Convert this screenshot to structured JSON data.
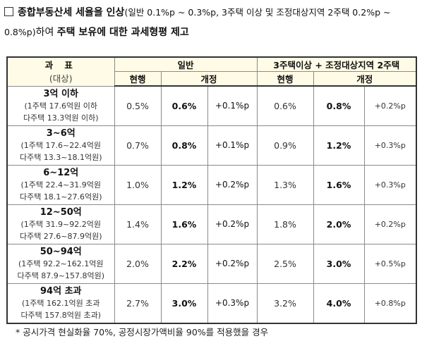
{
  "headline": {
    "title_bold": "종합부동산세 세율을 인상",
    "title_detail": "(일반 0.1%p ~ 0.3%p, 3주택 이상 및 조정대상지역 2주택 0.2%p ~ 0.8%p)",
    "title_mid": "하여 ",
    "title_end_bold": "주택 보유에 대한 과세형평 제고"
  },
  "table": {
    "header": {
      "col_bracket_top": "과  표",
      "col_bracket_sub": "(대상)",
      "group_general": "일반",
      "group_multi": "3주택이상 + 조정대상지역 2주택",
      "current": "현행",
      "revised": "개정"
    },
    "rows": [
      {
        "range": "3억 이하",
        "note1": "(1주택 17.6억원 이하",
        "note2": "다주택 13.3억원 이하)",
        "gen_current": "0.5%",
        "gen_revised": "0.6%",
        "gen_delta": "+0.1%p",
        "multi_current": "0.6%",
        "multi_revised": "0.8%",
        "multi_delta": "+0.2%p"
      },
      {
        "range": "3~6억",
        "note1": "(1주택 17.6~22.4억원",
        "note2": "다주택 13.3~18.1억원)",
        "gen_current": "0.7%",
        "gen_revised": "0.8%",
        "gen_delta": "+0.1%p",
        "multi_current": "0.9%",
        "multi_revised": "1.2%",
        "multi_delta": "+0.3%p"
      },
      {
        "range": "6~12억",
        "note1": "(1주택 22.4~31.9억원",
        "note2": "다주택 18.1~27.6억원)",
        "gen_current": "1.0%",
        "gen_revised": "1.2%",
        "gen_delta": "+0.2%p",
        "multi_current": "1.3%",
        "multi_revised": "1.6%",
        "multi_delta": "+0.3%p"
      },
      {
        "range": "12~50억",
        "note1": "(1주택 31.9~92.2억원",
        "note2": "다주택 27.6~87.9억원)",
        "gen_current": "1.4%",
        "gen_revised": "1.6%",
        "gen_delta": "+0.2%p",
        "multi_current": "1.8%",
        "multi_revised": "2.0%",
        "multi_delta": "+0.2%p"
      },
      {
        "range": "50~94억",
        "note1": "(1주택 92.2~162.1억원",
        "note2": "다주택 87.9~157.8억원)",
        "gen_current": "2.0%",
        "gen_revised": "2.2%",
        "gen_delta": "+0.2%p",
        "multi_current": "2.5%",
        "multi_revised": "3.0%",
        "multi_delta": "+0.5%p"
      },
      {
        "range": "94억 초과",
        "note1": "(1주택 162.1억원 초과",
        "note2": "다주택 157.8억원 초과)",
        "gen_current": "2.7%",
        "gen_revised": "3.0%",
        "gen_delta": "+0.3%p",
        "multi_current": "3.2%",
        "multi_revised": "4.0%",
        "multi_delta": "+0.8%p"
      }
    ]
  },
  "footnote": "* 공시가격 현실화율 70%, 공정시장가액비율 90%를 적용했을 경우"
}
